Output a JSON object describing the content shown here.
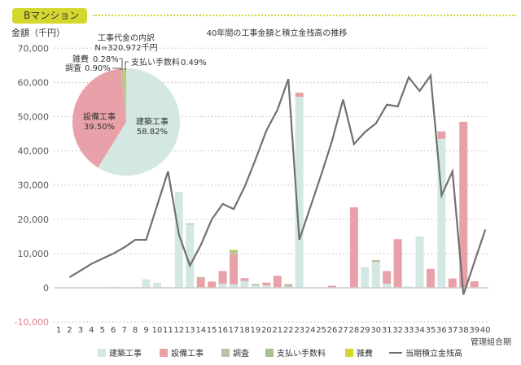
{
  "header": {
    "title": "Bマンション"
  },
  "chart_data": {
    "type": "bar+line",
    "title": "40年間の工事金額と積立金残高の推移",
    "ylabel": "金額（千円）",
    "xlabel": "管理組合期",
    "ylim": [
      -10000,
      70000
    ],
    "yticks": [
      -10000,
      0,
      10000,
      20000,
      30000,
      40000,
      50000,
      60000,
      70000
    ],
    "ytick_labels": [
      "-10,000",
      "0",
      "10,000",
      "20,000",
      "30,000",
      "40,000",
      "50,000",
      "60,000",
      "70,000"
    ],
    "x": [
      1,
      2,
      3,
      4,
      5,
      6,
      7,
      8,
      9,
      10,
      11,
      12,
      13,
      14,
      15,
      16,
      17,
      18,
      19,
      20,
      21,
      22,
      23,
      24,
      25,
      26,
      27,
      28,
      29,
      30,
      31,
      32,
      33,
      34,
      35,
      36,
      37,
      38,
      39,
      40
    ],
    "colors": {
      "建築工事": "#d3e8e3",
      "設備工事": "#e8a1a8",
      "調査": "#bfbfa3",
      "支払い手数料": "#a9c18b",
      "雑費": "#d6d62e",
      "当期積立金残高": "#707070",
      "negative_tick": "#e07a86"
    },
    "series": [
      {
        "name": "建築工事",
        "type": "bar",
        "values": [
          0,
          0,
          0,
          0,
          0,
          300,
          0,
          0,
          2500,
          1500,
          0,
          28000,
          18500,
          0,
          0,
          1200,
          1000,
          2000,
          700,
          700,
          0,
          300,
          55800,
          0,
          0,
          0,
          0,
          0,
          6000,
          7500,
          1200,
          0,
          400,
          15000,
          0,
          43500,
          0,
          0,
          0,
          0
        ]
      },
      {
        "name": "設備工事",
        "type": "bar",
        "values": [
          0,
          0,
          0,
          0,
          0,
          0,
          0,
          0,
          0,
          0,
          0,
          0,
          0,
          2800,
          1800,
          3700,
          8700,
          800,
          0,
          800,
          3500,
          0,
          1200,
          0,
          0,
          600,
          0,
          23500,
          0,
          0,
          3700,
          14200,
          0,
          0,
          5500,
          2200,
          2700,
          48500,
          1900,
          0
        ]
      },
      {
        "name": "調査",
        "type": "bar",
        "values": [
          0,
          0,
          0,
          0,
          0,
          0,
          0,
          0,
          0,
          0,
          0,
          0,
          0,
          0,
          0,
          0,
          700,
          0,
          400,
          0,
          0,
          800,
          0,
          0,
          0,
          0,
          0,
          0,
          0,
          600,
          0,
          0,
          0,
          0,
          0,
          0,
          0,
          0,
          0,
          0
        ]
      },
      {
        "name": "支払い手数料",
        "type": "bar",
        "values": [
          0,
          0,
          0,
          0,
          0,
          0,
          0,
          0,
          0,
          0,
          0,
          0,
          300,
          300,
          0,
          0,
          500,
          0,
          0,
          0,
          0,
          0,
          0,
          0,
          0,
          0,
          0,
          0,
          0,
          0,
          0,
          0,
          0,
          0,
          0,
          0,
          0,
          0,
          0,
          0
        ]
      },
      {
        "name": "雑費",
        "type": "bar",
        "values": [
          0,
          0,
          0,
          0,
          0,
          0,
          0,
          0,
          0,
          0,
          0,
          0,
          0,
          0,
          0,
          0,
          200,
          0,
          0,
          0,
          0,
          0,
          0,
          0,
          0,
          0,
          0,
          0,
          0,
          0,
          0,
          0,
          0,
          0,
          0,
          0,
          0,
          0,
          0,
          0
        ]
      },
      {
        "name": "当期積立金残高",
        "type": "line",
        "values": [
          null,
          3100,
          5000,
          7000,
          8500,
          10000,
          11800,
          14000,
          14000,
          24000,
          34000,
          15500,
          6500,
          12500,
          20000,
          24500,
          23000,
          29500,
          37500,
          46000,
          52000,
          61000,
          14000,
          23500,
          33000,
          43000,
          55000,
          42000,
          45500,
          48000,
          53500,
          53000,
          61500,
          57500,
          62000,
          27000,
          34000,
          -2000,
          7500,
          17000
        ]
      }
    ],
    "legend": [
      "建築工事",
      "設備工事",
      "調査",
      "支払い手数料",
      "雑費",
      "当期積立金残高"
    ],
    "legend_position": "bottom",
    "inset_pie": {
      "title": "工事代金の内訳",
      "subtitle": "N=320,972千円",
      "slices": [
        {
          "label": "建築工事",
          "value": 58.82,
          "text": "58.82%"
        },
        {
          "label": "設備工事",
          "value": 39.5,
          "text": "39.50%"
        },
        {
          "label": "調査",
          "value": 0.9,
          "text": "0.90%"
        },
        {
          "label": "雑費",
          "value": 0.28,
          "text": "0.28%"
        },
        {
          "label": "支払い手数料",
          "value": 0.49,
          "text": "0.49%"
        }
      ]
    }
  }
}
